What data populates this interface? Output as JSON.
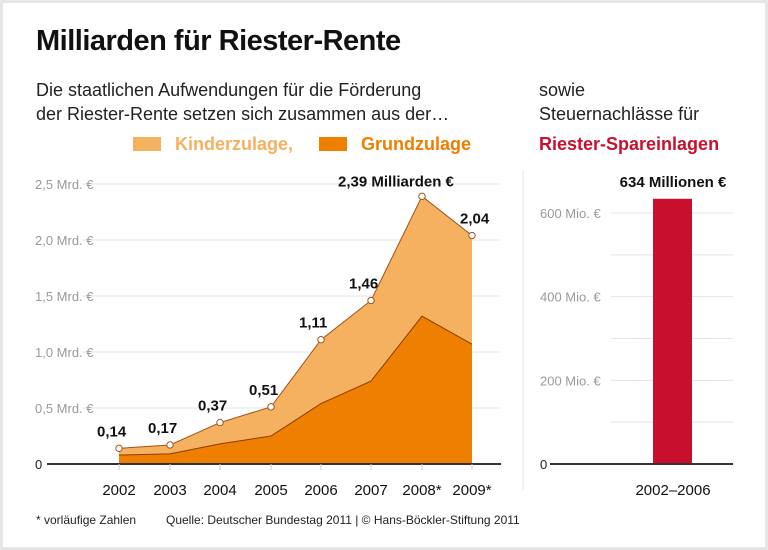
{
  "title": "Milliarden für Riester-Rente",
  "subtitle_left": [
    "Die staatlichen Aufwendungen für die Förderung",
    "der Riester-Rente setzen sich zusammen aus der…"
  ],
  "subtitle_right": [
    "sowie",
    "Steuernachlässe für"
  ],
  "legend": {
    "kinder": "Kinderzulage,",
    "grund": "Grundzulage",
    "riester": "Riester-Spareinlagen"
  },
  "colors": {
    "kinder": "#f5b15f",
    "grund": "#ee7f00",
    "riester": "#c8102e",
    "line": "#a0521a"
  },
  "chart_data": [
    {
      "type": "area",
      "stacked": true,
      "categories": [
        "2002",
        "2003",
        "2004",
        "2005",
        "2006",
        "2007",
        "2008*",
        "2009*"
      ],
      "series": [
        {
          "name": "Grundzulage",
          "values": [
            0.08,
            0.09,
            0.18,
            0.25,
            0.54,
            0.74,
            1.32,
            1.07
          ]
        },
        {
          "name": "Kinderzulage",
          "values": [
            0.06,
            0.08,
            0.19,
            0.26,
            0.57,
            0.72,
            1.07,
            0.97
          ]
        }
      ],
      "totals": [
        0.14,
        0.17,
        0.37,
        0.51,
        1.11,
        1.46,
        2.39,
        2.04
      ],
      "data_labels": [
        "0,14",
        "0,17",
        "0,37",
        "0,51",
        "1,11",
        "1,46",
        "2,39 Milliarden €",
        "2,04"
      ],
      "ylim": [
        0,
        2.5
      ],
      "yticks": [
        0,
        0.5,
        1.0,
        1.5,
        2.0,
        2.5
      ],
      "ytick_labels": [
        "0",
        "0,5 Mrd. €",
        "1,0 Mrd. €",
        "1,5 Mrd. €",
        "2,0 Mrd. €",
        "2,5 Mrd. €"
      ],
      "grid": true
    },
    {
      "type": "bar",
      "categories": [
        "2002–2006"
      ],
      "values": [
        634
      ],
      "data_labels": [
        "634 Millionen €"
      ],
      "ylim": [
        0,
        650
      ],
      "yticks": [
        0,
        100,
        200,
        300,
        400,
        500,
        600
      ],
      "ytick_labels": [
        "0",
        "",
        "200 Mio. €",
        "",
        "400 Mio. €",
        "",
        "600 Mio. €"
      ],
      "grid": true
    }
  ],
  "footer": {
    "note": "* vorläufige Zahlen",
    "source": "Quelle: Deutscher Bundestag 2011 | © Hans-Böckler-Stiftung 2011"
  }
}
